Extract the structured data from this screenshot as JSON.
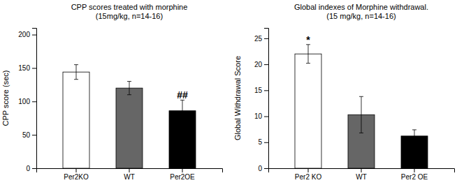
{
  "chart_data": [
    {
      "type": "bar",
      "title": "CPP scores treated with morphine\n(15mg/kg, n=14-16)",
      "ylabel": "CPP score (sec)",
      "categories": [
        "Per2KO",
        "WT",
        "Per2OE"
      ],
      "values": [
        144,
        120,
        86
      ],
      "errors": [
        11,
        10,
        16
      ],
      "colors": [
        "white",
        "#666666",
        "black"
      ],
      "ylim": [
        0,
        210
      ],
      "yticks": [
        0,
        50,
        100,
        150,
        200
      ],
      "annotations": [
        {
          "text": "##",
          "x": "Per2OE",
          "y": 104
        }
      ]
    },
    {
      "type": "bar",
      "title": "Global indexes of Morphine withdrawal.\n(15 mg/kg, n=14-16)",
      "ylabel": "Global Withdrawal Score",
      "categories": [
        "Per2 KO",
        "WT",
        "Per2 OE"
      ],
      "values": [
        22,
        10.3,
        6.2
      ],
      "errors": [
        1.8,
        3.5,
        1.2
      ],
      "colors": [
        "white",
        "#666666",
        "black"
      ],
      "ylim": [
        0,
        27
      ],
      "yticks": [
        0,
        5,
        10,
        15,
        20,
        25
      ],
      "annotations": [
        {
          "text": "*",
          "x": "Per2 KO",
          "y": 24.0
        }
      ]
    }
  ]
}
